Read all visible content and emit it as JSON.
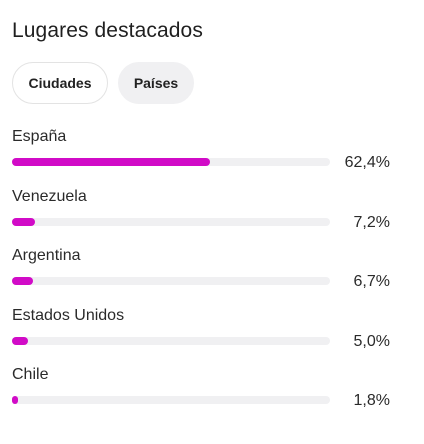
{
  "title": "Lugares destacados",
  "tabs": [
    {
      "label": "Ciudades"
    },
    {
      "label": "Países"
    }
  ],
  "accent_color": "#d10bc7",
  "countries": [
    {
      "name": "España",
      "value_text": "62,4%",
      "value": 62.4
    },
    {
      "name": "Venezuela",
      "value_text": "7,2%",
      "value": 7.2
    },
    {
      "name": "Argentina",
      "value_text": "6,7%",
      "value": 6.7
    },
    {
      "name": "Estados Unidos",
      "value_text": "5,0%",
      "value": 5.0
    },
    {
      "name": "Chile",
      "value_text": "1,8%",
      "value": 1.8
    }
  ]
}
